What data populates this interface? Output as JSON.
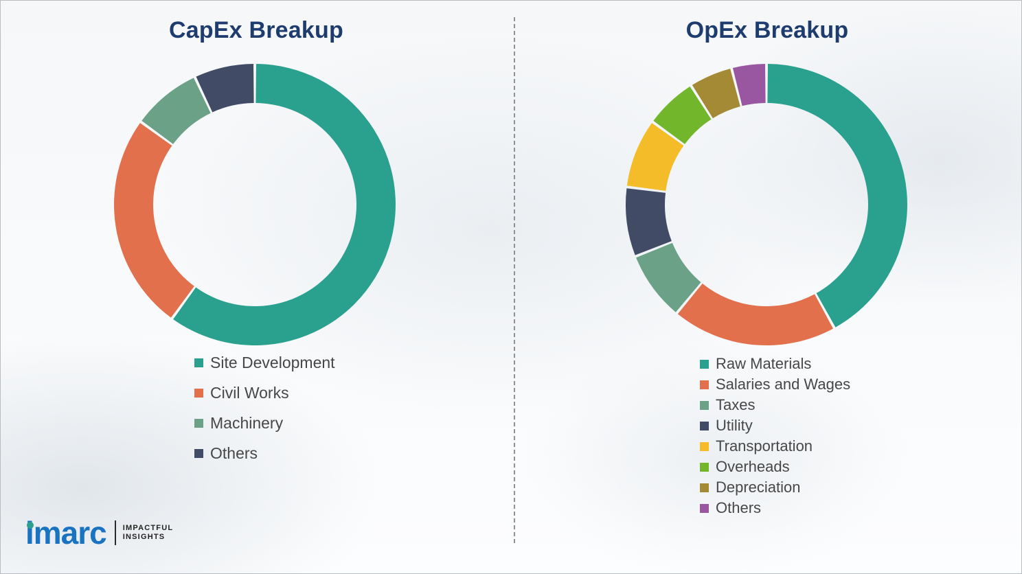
{
  "logo": {
    "wordmark": "imarc",
    "tagline1": "IMPACTFUL",
    "tagline2": "INSIGHTS"
  },
  "chart_data": [
    {
      "type": "pie",
      "donut": true,
      "title": "CapEx Breakup",
      "legend_position": "bottom-left",
      "start_angle_deg": 0,
      "direction": "clockwise",
      "segments": [
        {
          "label": "Site Development",
          "value": 60,
          "color": "#2aa08f"
        },
        {
          "label": "Civil Works",
          "value": 25,
          "color": "#e2704d"
        },
        {
          "label": "Machinery",
          "value": 8,
          "color": "#6ba287"
        },
        {
          "label": "Others",
          "value": 7,
          "color": "#424b66"
        }
      ]
    },
    {
      "type": "pie",
      "donut": true,
      "title": "OpEx Breakup",
      "legend_position": "bottom-left",
      "start_angle_deg": 0,
      "direction": "clockwise",
      "segments": [
        {
          "label": "Raw Materials",
          "value": 42,
          "color": "#2aa08f"
        },
        {
          "label": "Salaries and Wages",
          "value": 19,
          "color": "#e2704d"
        },
        {
          "label": "Taxes",
          "value": 8,
          "color": "#6ba287"
        },
        {
          "label": "Utility",
          "value": 8,
          "color": "#424b66"
        },
        {
          "label": "Transportation",
          "value": 8,
          "color": "#f3bc28"
        },
        {
          "label": "Overheads",
          "value": 6,
          "color": "#72b62c"
        },
        {
          "label": "Depreciation",
          "value": 5,
          "color": "#a58a35"
        },
        {
          "label": "Others",
          "value": 4,
          "color": "#9a57a1"
        }
      ]
    }
  ]
}
